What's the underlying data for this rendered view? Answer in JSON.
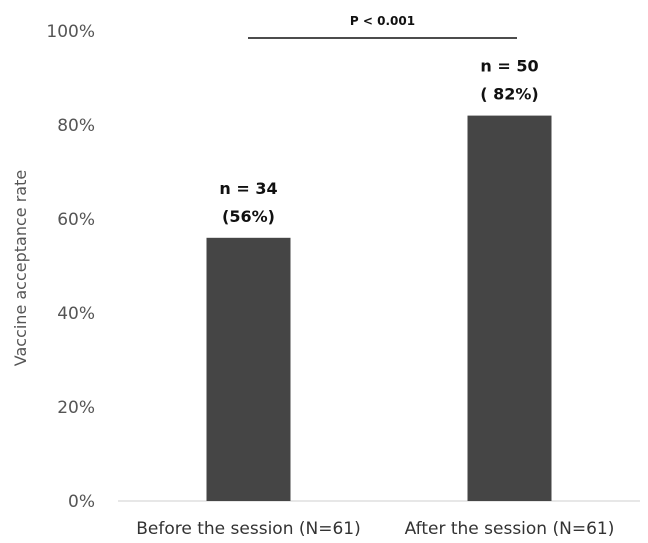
{
  "chart_data": {
    "type": "bar",
    "title": "",
    "xlabel": "",
    "ylabel": "Vaccine acceptance rate",
    "categories": [
      "Before the session (N=61)",
      "After the session (N=61)"
    ],
    "series": [
      {
        "values": [
          56,
          82
        ],
        "color": "#454545"
      }
    ],
    "data_labels": [
      {
        "count": "n = 34",
        "percent": "(56%)"
      },
      {
        "count": "n = 50",
        "percent": "( 82%)"
      }
    ],
    "ylim": [
      0,
      100
    ],
    "yticks": [
      0,
      20,
      40,
      60,
      80,
      100
    ],
    "ytick_labels": [
      "0%",
      "20%",
      "40%",
      "60%",
      "80%",
      "100%"
    ],
    "grid": false,
    "legend": "none",
    "annotation": {
      "text": "P < 0.001",
      "spans": [
        "Before the session (N=61)",
        "After the session (N=61)"
      ]
    },
    "axis_color": "#cfcfcf"
  }
}
